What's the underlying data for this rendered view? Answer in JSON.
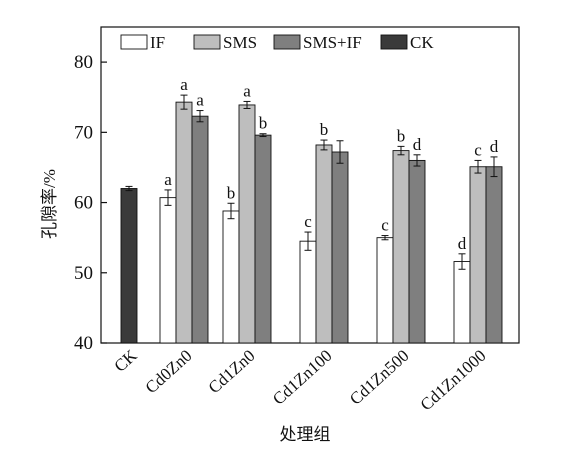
{
  "chart_data": {
    "type": "bar",
    "title": "",
    "xlabel": "处理组",
    "ylabel": "孔隙率/%",
    "ylim": [
      40,
      85
    ],
    "yticks": [
      40,
      50,
      60,
      70,
      80
    ],
    "grid": false,
    "legend_position": "top",
    "categories": [
      "CK",
      "Cd0Zn0",
      "Cd1Zn0",
      "Cd1Zn100",
      "Cd1Zn500",
      "Cd1Zn1000"
    ],
    "series": [
      {
        "name": "IF",
        "color": "#ffffff",
        "values": [
          null,
          60.7,
          58.8,
          54.5,
          55.0,
          51.6
        ],
        "errors": [
          null,
          1.1,
          1.1,
          1.3,
          0.3,
          1.1
        ],
        "labels": [
          null,
          "a",
          "b",
          "c",
          "c",
          "d"
        ]
      },
      {
        "name": "SMS",
        "color": "#bebebe",
        "values": [
          null,
          74.3,
          73.9,
          68.2,
          67.4,
          65.1
        ],
        "errors": [
          null,
          1.0,
          0.5,
          0.7,
          0.6,
          0.9
        ],
        "labels": [
          null,
          "a",
          "a",
          "b",
          "b",
          "c"
        ]
      },
      {
        "name": "SMS+IF",
        "color": "#7f7f7f",
        "values": [
          null,
          72.3,
          69.6,
          67.2,
          66.0,
          65.1
        ],
        "errors": [
          null,
          0.8,
          0.2,
          1.6,
          0.8,
          1.4
        ],
        "labels": [
          null,
          "a",
          "b",
          "",
          "d",
          "d"
        ]
      },
      {
        "name": "CK",
        "color": "#3a3a3a",
        "values": [
          62.0,
          null,
          null,
          null,
          null,
          null
        ],
        "errors": [
          0.3,
          null,
          null,
          null,
          null,
          null
        ],
        "labels": [
          null,
          null,
          null,
          null,
          null,
          null
        ]
      }
    ]
  }
}
